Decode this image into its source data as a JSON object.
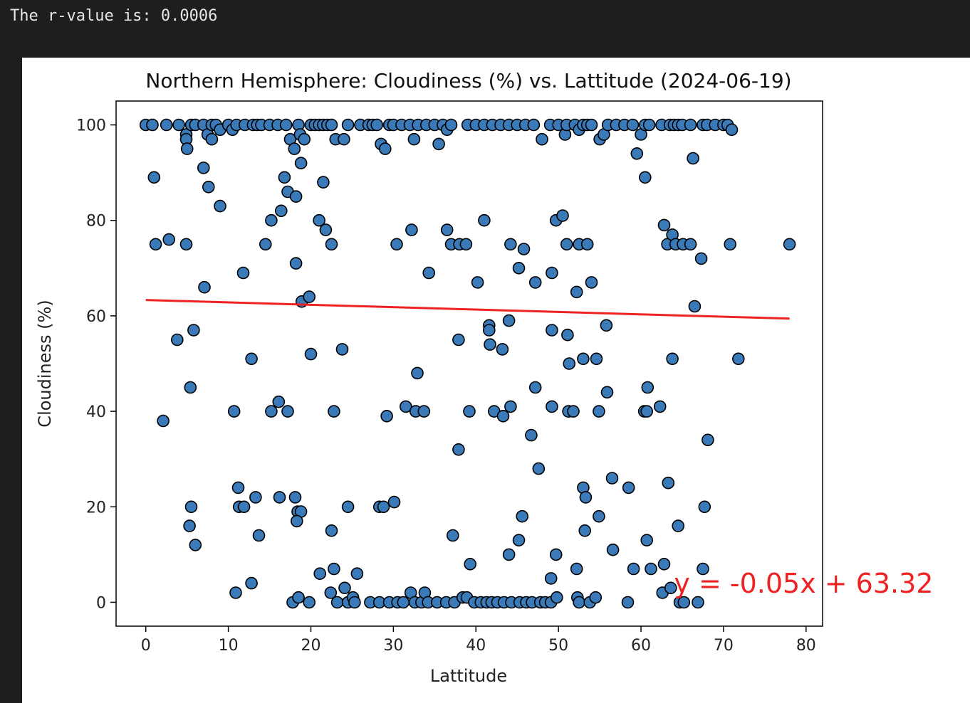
{
  "console": {
    "r_value_text": "The r-value is: 0.0006"
  },
  "chart_data": {
    "type": "scatter",
    "title": "Northern Hemisphere: Cloudiness (%) vs. Lattitude (2024-06-19)",
    "xlabel": "Lattitude",
    "ylabel": "Cloudiness (%)",
    "xlim": [
      -3.6,
      82
    ],
    "ylim": [
      -5,
      105
    ],
    "xticks": [
      0,
      10,
      20,
      30,
      40,
      50,
      60,
      70,
      80
    ],
    "yticks": [
      0,
      20,
      40,
      60,
      80,
      100
    ],
    "grid": false,
    "marker_color": "#3a7ab8",
    "marker_edge_color": "#000000",
    "regression": {
      "equation_label": "y = -0.05x + 63.32",
      "label_at": [
        64,
        2
      ],
      "color": "#ee2222",
      "slope": -0.05,
      "intercept": 63.32,
      "x_range": [
        0,
        78
      ]
    },
    "points": [
      [
        0,
        100
      ],
      [
        0.8,
        100
      ],
      [
        2.5,
        100
      ],
      [
        4,
        100
      ],
      [
        4.9,
        98
      ],
      [
        4.9,
        97
      ],
      [
        5,
        95
      ],
      [
        5.5,
        100
      ],
      [
        6,
        100
      ],
      [
        7,
        100
      ],
      [
        7.5,
        98
      ],
      [
        8,
        97
      ],
      [
        8,
        100
      ],
      [
        8.5,
        100
      ],
      [
        9,
        99
      ],
      [
        10,
        100
      ],
      [
        10.5,
        99
      ],
      [
        11,
        100
      ],
      [
        12,
        100
      ],
      [
        13,
        100
      ],
      [
        13.5,
        100
      ],
      [
        14,
        100
      ],
      [
        15,
        100
      ],
      [
        16,
        100
      ],
      [
        17,
        100
      ],
      [
        17.5,
        97
      ],
      [
        18,
        95
      ],
      [
        18.5,
        100
      ],
      [
        18.7,
        98
      ],
      [
        19.2,
        97
      ],
      [
        20,
        100
      ],
      [
        20.5,
        100
      ],
      [
        21,
        100
      ],
      [
        21.5,
        100
      ],
      [
        22,
        100
      ],
      [
        22.5,
        100
      ],
      [
        23,
        97
      ],
      [
        24,
        97
      ],
      [
        24.5,
        100
      ],
      [
        26,
        100
      ],
      [
        27,
        100
      ],
      [
        27.5,
        100
      ],
      [
        28,
        100
      ],
      [
        28.5,
        96
      ],
      [
        29,
        95
      ],
      [
        29.5,
        100
      ],
      [
        30,
        100
      ],
      [
        31,
        100
      ],
      [
        32,
        100
      ],
      [
        32.5,
        97
      ],
      [
        33,
        100
      ],
      [
        34,
        100
      ],
      [
        35,
        100
      ],
      [
        35.5,
        96
      ],
      [
        36,
        100
      ],
      [
        36.5,
        99
      ],
      [
        37,
        100
      ],
      [
        39,
        100
      ],
      [
        40,
        100
      ],
      [
        41,
        100
      ],
      [
        42,
        100
      ],
      [
        43,
        100
      ],
      [
        44,
        100
      ],
      [
        45,
        100
      ],
      [
        46,
        100
      ],
      [
        47,
        100
      ],
      [
        48,
        97
      ],
      [
        49,
        100
      ],
      [
        50,
        100
      ],
      [
        50.8,
        98
      ],
      [
        51,
        100
      ],
      [
        52,
        100
      ],
      [
        52.5,
        99
      ],
      [
        53,
        100
      ],
      [
        53.5,
        100
      ],
      [
        54,
        100
      ],
      [
        55,
        97
      ],
      [
        55.5,
        98
      ],
      [
        56,
        100
      ],
      [
        57,
        100
      ],
      [
        58,
        100
      ],
      [
        59,
        100
      ],
      [
        59.5,
        94
      ],
      [
        60,
        98
      ],
      [
        60.5,
        100
      ],
      [
        61,
        100
      ],
      [
        62.5,
        100
      ],
      [
        63.5,
        100
      ],
      [
        64,
        100
      ],
      [
        64.5,
        100
      ],
      [
        65,
        100
      ],
      [
        66,
        100
      ],
      [
        67.5,
        100
      ],
      [
        68,
        100
      ],
      [
        69,
        100
      ],
      [
        70,
        100
      ],
      [
        70.5,
        100
      ],
      [
        71,
        99
      ],
      [
        1,
        89
      ],
      [
        7,
        91
      ],
      [
        7.6,
        87
      ],
      [
        9,
        83
      ],
      [
        16.8,
        89
      ],
      [
        17.2,
        86
      ],
      [
        18.2,
        85
      ],
      [
        18.8,
        92
      ],
      [
        21.5,
        88
      ],
      [
        66.3,
        93
      ],
      [
        60.5,
        89
      ],
      [
        1.2,
        75
      ],
      [
        2.8,
        76
      ],
      [
        4.9,
        75
      ],
      [
        11.8,
        69
      ],
      [
        14.5,
        75
      ],
      [
        15.2,
        80
      ],
      [
        16.4,
        82
      ],
      [
        18.2,
        71
      ],
      [
        21,
        80
      ],
      [
        21.8,
        78
      ],
      [
        22.5,
        75
      ],
      [
        30.4,
        75
      ],
      [
        32.2,
        78
      ],
      [
        34.3,
        69
      ],
      [
        36.5,
        78
      ],
      [
        37,
        75
      ],
      [
        38,
        75
      ],
      [
        38.8,
        75
      ],
      [
        40.2,
        67
      ],
      [
        41,
        80
      ],
      [
        44.2,
        75
      ],
      [
        45.2,
        70
      ],
      [
        45.8,
        74
      ],
      [
        47.2,
        67
      ],
      [
        49.2,
        69
      ],
      [
        49.7,
        80
      ],
      [
        50.5,
        81
      ],
      [
        51,
        75
      ],
      [
        52.2,
        65
      ],
      [
        52.5,
        75
      ],
      [
        53.5,
        75
      ],
      [
        54,
        67
      ],
      [
        62.8,
        79
      ],
      [
        63.2,
        75
      ],
      [
        63.8,
        77
      ],
      [
        64.2,
        75
      ],
      [
        65.1,
        75
      ],
      [
        66,
        75
      ],
      [
        67.3,
        72
      ],
      [
        70.8,
        75
      ],
      [
        78,
        75
      ],
      [
        7.1,
        66
      ],
      [
        18.9,
        63
      ],
      [
        19.8,
        64
      ],
      [
        5.8,
        57
      ],
      [
        41.6,
        58
      ],
      [
        41.6,
        57
      ],
      [
        55.8,
        58
      ],
      [
        51.1,
        56
      ],
      [
        66.5,
        62
      ],
      [
        3.8,
        55
      ],
      [
        23.8,
        53
      ],
      [
        20,
        52
      ],
      [
        12.8,
        51
      ],
      [
        32.9,
        48
      ],
      [
        37.9,
        55
      ],
      [
        41.7,
        54
      ],
      [
        43.2,
        53
      ],
      [
        44,
        59
      ],
      [
        49.2,
        57
      ],
      [
        51.3,
        50
      ],
      [
        53,
        51
      ],
      [
        54.6,
        51
      ],
      [
        71.8,
        51
      ],
      [
        63.8,
        51
      ],
      [
        5.4,
        45
      ],
      [
        10.7,
        40
      ],
      [
        15.2,
        40
      ],
      [
        16.1,
        42
      ],
      [
        17.2,
        40
      ],
      [
        22.8,
        40
      ],
      [
        29.2,
        39
      ],
      [
        31.5,
        41
      ],
      [
        32.7,
        40
      ],
      [
        33.7,
        40
      ],
      [
        39.2,
        40
      ],
      [
        42.2,
        40
      ],
      [
        43.3,
        39
      ],
      [
        44.2,
        41
      ],
      [
        46.7,
        35
      ],
      [
        47.2,
        45
      ],
      [
        49.2,
        41
      ],
      [
        51.2,
        40
      ],
      [
        51.8,
        40
      ],
      [
        54.9,
        40
      ],
      [
        55.9,
        44
      ],
      [
        60.4,
        40
      ],
      [
        60.7,
        40
      ],
      [
        60.8,
        45
      ],
      [
        62.3,
        41
      ],
      [
        68.1,
        34
      ],
      [
        2.1,
        38
      ],
      [
        37.9,
        32
      ],
      [
        47.6,
        28
      ],
      [
        56.5,
        26
      ],
      [
        58.5,
        24
      ],
      [
        63.3,
        25
      ],
      [
        5.3,
        16
      ],
      [
        5.5,
        20
      ],
      [
        6,
        12
      ],
      [
        11.2,
        24
      ],
      [
        11.3,
        20
      ],
      [
        11.9,
        20
      ],
      [
        13.3,
        22
      ],
      [
        13.7,
        14
      ],
      [
        16.2,
        22
      ],
      [
        18.1,
        22
      ],
      [
        18.4,
        19
      ],
      [
        18.8,
        19
      ],
      [
        18.3,
        17
      ],
      [
        22.5,
        15
      ],
      [
        24.5,
        20
      ],
      [
        28.3,
        20
      ],
      [
        28.8,
        20
      ],
      [
        30.1,
        21
      ],
      [
        37.2,
        14
      ],
      [
        39.3,
        8
      ],
      [
        44,
        10
      ],
      [
        45.2,
        13
      ],
      [
        45.6,
        18
      ],
      [
        49.1,
        5
      ],
      [
        49.7,
        10
      ],
      [
        52.2,
        7
      ],
      [
        53,
        24
      ],
      [
        53.3,
        22
      ],
      [
        53.2,
        15
      ],
      [
        54.9,
        18
      ],
      [
        56.6,
        11
      ],
      [
        59.1,
        7
      ],
      [
        60.7,
        13
      ],
      [
        61.2,
        7
      ],
      [
        62.8,
        8
      ],
      [
        64.5,
        16
      ],
      [
        67.5,
        7
      ],
      [
        67.7,
        20
      ],
      [
        10.9,
        2
      ],
      [
        12.8,
        4
      ],
      [
        17.8,
        0
      ],
      [
        18.5,
        1
      ],
      [
        19.8,
        0
      ],
      [
        21.1,
        6
      ],
      [
        22.4,
        2
      ],
      [
        22.8,
        7
      ],
      [
        23.2,
        0
      ],
      [
        24.1,
        3
      ],
      [
        24.5,
        0
      ],
      [
        25.1,
        1
      ],
      [
        25.3,
        0
      ],
      [
        25.6,
        6
      ],
      [
        27.2,
        0
      ],
      [
        28.3,
        0
      ],
      [
        29.5,
        0
      ],
      [
        30.5,
        0
      ],
      [
        31.2,
        0
      ],
      [
        32.1,
        2
      ],
      [
        32.6,
        0
      ],
      [
        33.4,
        0
      ],
      [
        33.8,
        2
      ],
      [
        34.2,
        0
      ],
      [
        35.3,
        0
      ],
      [
        36.4,
        0
      ],
      [
        37.4,
        0
      ],
      [
        38.4,
        1
      ],
      [
        38.9,
        1
      ],
      [
        39.8,
        0
      ],
      [
        40.6,
        0
      ],
      [
        41.3,
        0
      ],
      [
        41.9,
        0
      ],
      [
        42.6,
        0
      ],
      [
        43.4,
        0
      ],
      [
        44.3,
        0
      ],
      [
        45.3,
        0
      ],
      [
        46.1,
        0
      ],
      [
        46.8,
        0
      ],
      [
        47.8,
        0
      ],
      [
        48.4,
        0
      ],
      [
        49.1,
        0
      ],
      [
        49.8,
        1
      ],
      [
        52.3,
        1
      ],
      [
        52.5,
        0
      ],
      [
        53.8,
        0
      ],
      [
        54.5,
        1
      ],
      [
        58.4,
        0
      ],
      [
        62.6,
        2
      ],
      [
        63.6,
        3
      ],
      [
        64.7,
        0
      ],
      [
        65.2,
        0
      ],
      [
        66.9,
        0
      ]
    ]
  }
}
